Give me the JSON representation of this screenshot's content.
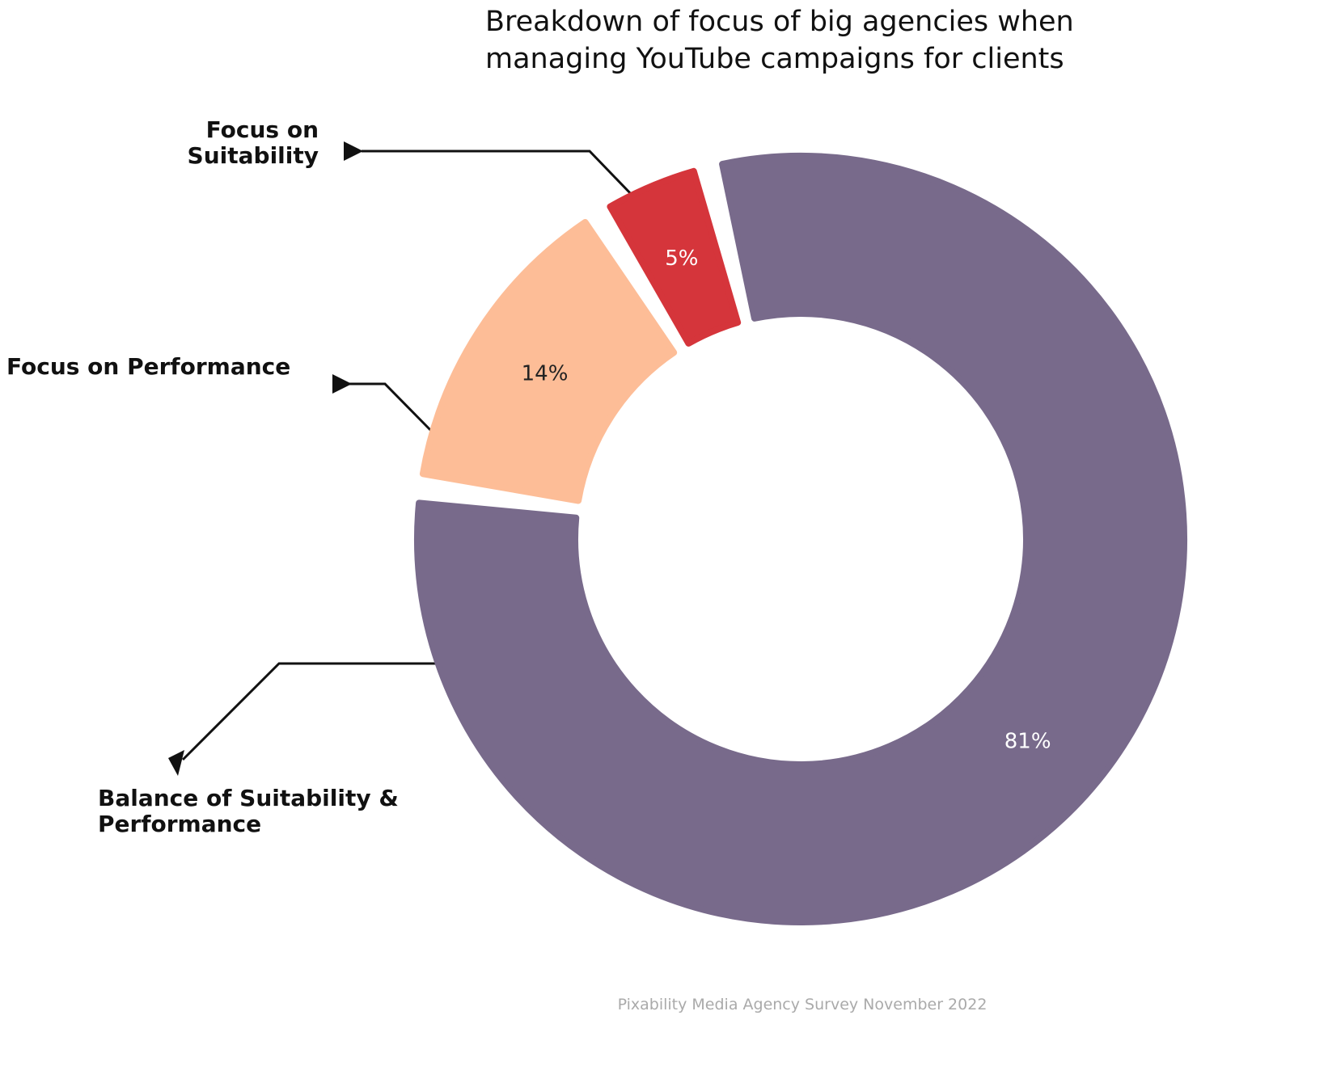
{
  "chart_data": {
    "type": "donut",
    "title": "Breakdown of focus of big agencies when managing YouTube campaigns for clients",
    "categories": [
      "Balance of Suitability & Performance",
      "Focus on Performance",
      "Focus on Suitability"
    ],
    "values": [
      81,
      14,
      5
    ],
    "value_labels": [
      "81%",
      "14%",
      "5%"
    ],
    "colors": [
      "#786a8b",
      "#fdbd97",
      "#d5353b"
    ],
    "label_colors": [
      "#ffffff",
      "#222222",
      "#ffffff"
    ],
    "source": "Pixability Media Agency Survey November 2022"
  }
}
